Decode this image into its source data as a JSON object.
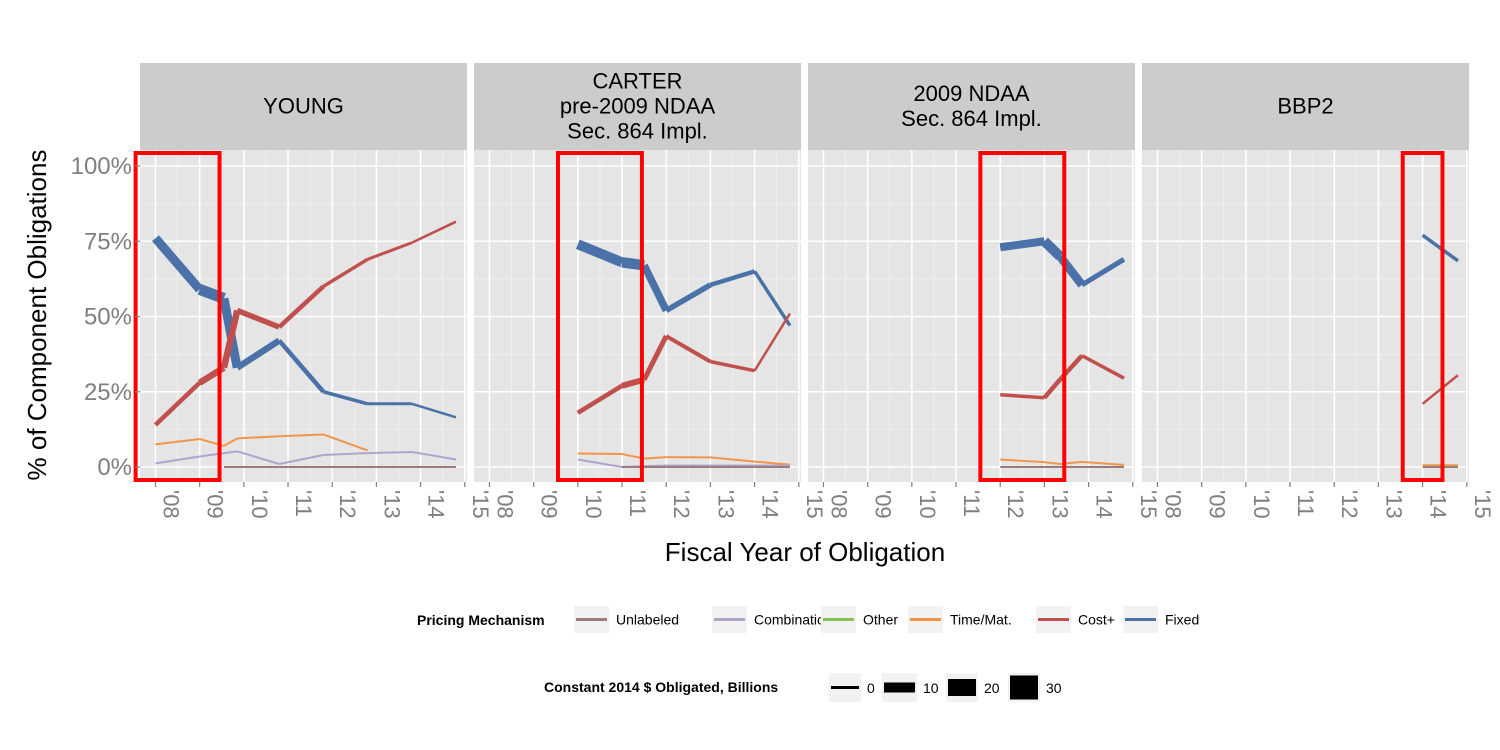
{
  "chart_data": {
    "type": "line",
    "ylabel": "% of Component Obligations",
    "xlabel": "Fiscal Year of Obligation",
    "ylim": [
      0,
      1
    ],
    "yticks": [
      "0%",
      "25%",
      "50%",
      "75%",
      "100%"
    ],
    "xticks": [
      "'08",
      "'09",
      "'10",
      "'11",
      "'12",
      "'13",
      "'14",
      "'15"
    ],
    "panels": [
      {
        "title": "YOUNG",
        "highlight_years": [
          2008,
          2009
        ],
        "series": [
          {
            "name": "Fixed",
            "points": [
              [
                2008,
                0.76,
                6
              ],
              [
                2009,
                0.59,
                12
              ],
              [
                2009.55,
                0.56,
                10
              ],
              [
                2009.85,
                0.33,
                8
              ],
              [
                2010.8,
                0.42,
                5
              ],
              [
                2011.8,
                0.25,
                4
              ],
              [
                2012.8,
                0.21,
                3
              ],
              [
                2013.8,
                0.21,
                3
              ],
              [
                2014.8,
                0.165,
                2
              ]
            ]
          },
          {
            "name": "Cost+",
            "points": [
              [
                2008,
                0.14,
                3
              ],
              [
                2009,
                0.28,
                6
              ],
              [
                2009.55,
                0.33,
                7
              ],
              [
                2009.85,
                0.52,
                6
              ],
              [
                2010.8,
                0.465,
                5
              ],
              [
                2011.8,
                0.6,
                4
              ],
              [
                2012.8,
                0.69,
                3
              ],
              [
                2013.8,
                0.745,
                3
              ],
              [
                2014.8,
                0.815,
                2
              ]
            ]
          },
          {
            "name": "Time/Mat.",
            "points": [
              [
                2008,
                0.075,
                2
              ],
              [
                2009,
                0.093,
                2
              ],
              [
                2009.55,
                0.07,
                2
              ],
              [
                2009.85,
                0.095,
                2
              ],
              [
                2010.8,
                0.102,
                2
              ],
              [
                2011.8,
                0.108,
                2
              ],
              [
                2012.8,
                0.055,
                2
              ]
            ]
          },
          {
            "name": "Combination",
            "points": [
              [
                2008,
                0.012,
                2
              ],
              [
                2009,
                0.035,
                2
              ],
              [
                2009.85,
                0.052,
                2
              ],
              [
                2010.8,
                0.01,
                2
              ],
              [
                2011.8,
                0.04,
                2
              ],
              [
                2012.8,
                0.046,
                2
              ],
              [
                2013.8,
                0.05,
                2
              ],
              [
                2014.8,
                0.025,
                2
              ]
            ]
          },
          {
            "name": "Unlabeled",
            "points": [
              [
                2009.55,
                0.0,
                2
              ],
              [
                2010.8,
                0.0,
                2
              ],
              [
                2011.8,
                0.0,
                2
              ],
              [
                2012.8,
                0.0,
                2
              ],
              [
                2013.8,
                0.0,
                2
              ],
              [
                2014.8,
                0.0,
                2
              ]
            ]
          }
        ]
      },
      {
        "title": "CARTER\npre-2009 NDAA\nSec. 864 Impl.",
        "highlight_years": [
          2010,
          2011
        ],
        "series": [
          {
            "name": "Fixed",
            "points": [
              [
                2010,
                0.74,
                8
              ],
              [
                2011,
                0.68,
                12
              ],
              [
                2011.5,
                0.67,
                9
              ],
              [
                2012,
                0.52,
                6
              ],
              [
                2013,
                0.605,
                5
              ],
              [
                2014,
                0.65,
                4
              ],
              [
                2014.8,
                0.47,
                3
              ]
            ]
          },
          {
            "name": "Cost+",
            "points": [
              [
                2010,
                0.18,
                3
              ],
              [
                2011,
                0.27,
                6
              ],
              [
                2011.5,
                0.29,
                6
              ],
              [
                2012,
                0.435,
                4
              ],
              [
                2013,
                0.35,
                4
              ],
              [
                2014,
                0.32,
                3
              ],
              [
                2014.8,
                0.51,
                2
              ]
            ]
          },
          {
            "name": "Time/Mat.",
            "points": [
              [
                2010,
                0.045,
                2
              ],
              [
                2011,
                0.043,
                2
              ],
              [
                2011.5,
                0.028,
                2
              ],
              [
                2012,
                0.033,
                2
              ],
              [
                2013,
                0.032,
                2
              ],
              [
                2014,
                0.018,
                2
              ],
              [
                2014.8,
                0.008,
                2
              ]
            ]
          },
          {
            "name": "Combination",
            "points": [
              [
                2010,
                0.025,
                2
              ],
              [
                2011,
                0.0,
                2
              ],
              [
                2012,
                0.005,
                2
              ],
              [
                2013,
                0.005,
                2
              ],
              [
                2014,
                0.005,
                2
              ],
              [
                2014.8,
                0.005,
                2
              ]
            ]
          },
          {
            "name": "Unlabeled",
            "points": [
              [
                2011,
                0.0,
                2
              ],
              [
                2012,
                0.0,
                2
              ],
              [
                2013,
                0.0,
                2
              ],
              [
                2014,
                0.0,
                2
              ],
              [
                2014.8,
                0.0,
                2
              ]
            ]
          }
        ]
      },
      {
        "title": "2009 NDAA\nSec. 864 Impl.",
        "highlight_years": [
          2012,
          2013
        ],
        "series": [
          {
            "name": "Fixed",
            "points": [
              [
                2012,
                0.73,
                7
              ],
              [
                2013,
                0.75,
                9
              ],
              [
                2013.35,
                0.7,
                11
              ],
              [
                2013.85,
                0.605,
                6
              ],
              [
                2014.8,
                0.69,
                4
              ]
            ]
          },
          {
            "name": "Cost+",
            "points": [
              [
                2012,
                0.24,
                3
              ],
              [
                2013,
                0.23,
                4
              ],
              [
                2013.35,
                0.29,
                5
              ],
              [
                2013.85,
                0.37,
                4
              ],
              [
                2014.8,
                0.295,
                3
              ]
            ]
          },
          {
            "name": "Time/Mat.",
            "points": [
              [
                2012,
                0.025,
                2
              ],
              [
                2013,
                0.016,
                2
              ],
              [
                2013.35,
                0.01,
                2
              ],
              [
                2013.85,
                0.017,
                2
              ],
              [
                2014.8,
                0.007,
                2
              ]
            ]
          },
          {
            "name": "Unlabeled",
            "points": [
              [
                2012,
                0.0,
                2
              ],
              [
                2013,
                0.0,
                2
              ],
              [
                2013.85,
                0.0,
                2
              ],
              [
                2014.8,
                0.0,
                2
              ]
            ]
          }
        ]
      },
      {
        "title": "BBP2",
        "highlight_years": [
          2014
        ],
        "series": [
          {
            "name": "Fixed",
            "points": [
              [
                2014,
                0.77,
                4
              ],
              [
                2014.8,
                0.685,
                3
              ]
            ]
          },
          {
            "name": "Cost+",
            "points": [
              [
                2014,
                0.21,
                3
              ],
              [
                2014.8,
                0.305,
                2
              ]
            ]
          },
          {
            "name": "Time/Mat.",
            "points": [
              [
                2014,
                0.006,
                2
              ],
              [
                2014.8,
                0.006,
                2
              ]
            ]
          },
          {
            "name": "Unlabeled",
            "points": [
              [
                2014,
                0.0,
                2
              ],
              [
                2014.8,
                0.0,
                2
              ]
            ]
          }
        ]
      }
    ],
    "legend_pricing": {
      "title": "Pricing Mechanism",
      "items": [
        {
          "name": "Unlabeled",
          "color": "#9c7b7b"
        },
        {
          "name": "Combination",
          "color": "#b0a3cc"
        },
        {
          "name": "Other",
          "color": "#86c451"
        },
        {
          "name": "Time/Mat.",
          "color": "#f2954a"
        },
        {
          "name": "Cost+",
          "color": "#c0504d"
        },
        {
          "name": "Fixed",
          "color": "#4a72a8"
        }
      ]
    },
    "legend_size": {
      "title": "Constant 2014 $ Obligated, Billions",
      "items": [
        "0",
        "10",
        "20",
        "30"
      ]
    },
    "colors": {
      "panel_bg": "#e5e5e5",
      "strip_bg": "#cccccc",
      "grid": "#ffffff",
      "highlight": "#ff0000"
    }
  }
}
